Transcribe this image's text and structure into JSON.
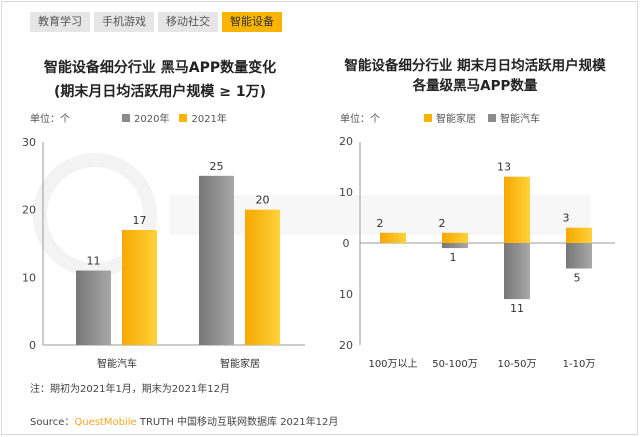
{
  "tabs": [
    "教育学习",
    "手机游戏",
    "移动社交",
    "智能设备"
  ],
  "active_tab": 3,
  "watermark": "QUESTMOBILE",
  "colors": {
    "gray": "#8c8c8c",
    "yellow": "#f8b400"
  },
  "chart_data": [
    {
      "type": "bar",
      "title_line1": "智能设备细分行业 黑马APP数量变化",
      "title_line2": "(期末月日均活跃用户规模 ≥ 1万)",
      "unit": "单位：个",
      "categories": [
        "智能汽车",
        "智能家居"
      ],
      "series": [
        {
          "name": "2020年",
          "values": [
            11,
            25
          ]
        },
        {
          "name": "2021年",
          "values": [
            17,
            20
          ]
        }
      ],
      "ylim": [
        0,
        30
      ],
      "yticks": [
        "0",
        "10",
        "20",
        "30"
      ]
    },
    {
      "type": "bar",
      "title_line1": "智能设备细分行业 期末月日均活跃用户规模",
      "title_line2": "各量级黑马APP数量",
      "unit": "单位：个",
      "categories": [
        "100万以上",
        "50-100万",
        "10-50万",
        "1-10万"
      ],
      "series": [
        {
          "name": "智能家居",
          "values": [
            2,
            2,
            13,
            3
          ],
          "direction": "up"
        },
        {
          "name": "智能汽车",
          "values": [
            0,
            1,
            11,
            5
          ],
          "direction": "down"
        }
      ],
      "ylim": [
        -20,
        20
      ],
      "yticks": [
        "20",
        "10",
        "0",
        "10",
        "20"
      ]
    }
  ],
  "note": "注：期初为2021年1月，期末为2021年12月",
  "source": {
    "label": "Source：",
    "brand": "QuestMobile",
    "rest": " TRUTH 中国移动互联网数据库 2021年12月"
  }
}
